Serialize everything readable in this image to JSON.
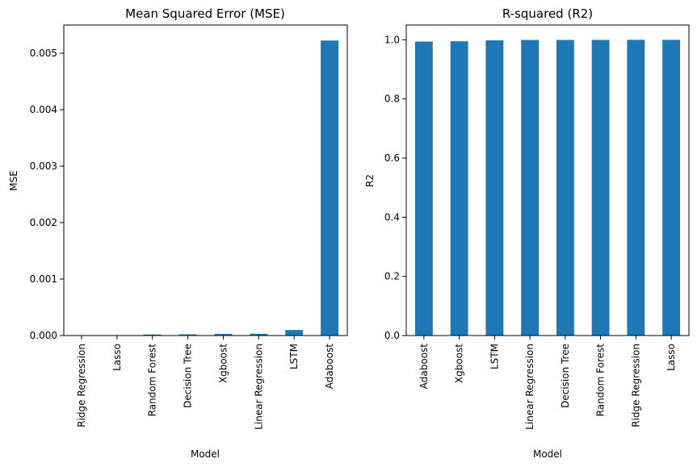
{
  "chart_data": [
    {
      "type": "bar",
      "title": "Mean Squared Error (MSE)",
      "xlabel": "Model",
      "ylabel": "MSE",
      "categories": [
        "Ridge Regression",
        "Lasso",
        "Random Forest",
        "Decision Tree",
        "Xgboost",
        "Linear Regression",
        "LSTM",
        "Adaboost"
      ],
      "values": [
        2e-07,
        3e-07,
        1.8e-05,
        2.1e-05,
        2.8e-05,
        3.1e-05,
        9.8e-05,
        0.005225
      ],
      "ylim": [
        0,
        0.0055
      ],
      "yticks": [
        "0.000",
        "0.001",
        "0.002",
        "0.003",
        "0.004",
        "0.005"
      ],
      "ytick_values": [
        0,
        0.001,
        0.002,
        0.003,
        0.004,
        0.005
      ],
      "bar_color": "#1f77b4",
      "grid": false,
      "legend": "none"
    },
    {
      "type": "bar",
      "title": "R-squared (R2)",
      "xlabel": "Model",
      "ylabel": "R2",
      "categories": [
        "Adaboost",
        "Xgboost",
        "LSTM",
        "Linear Regression",
        "Decision Tree",
        "Random Forest",
        "Ridge Regression",
        "Lasso"
      ],
      "values": [
        0.994,
        0.995,
        0.998,
        0.9995,
        0.9996,
        0.9997,
        0.9999,
        0.9999
      ],
      "ylim": [
        0,
        1.05
      ],
      "yticks": [
        "0.0",
        "0.2",
        "0.4",
        "0.6",
        "0.8",
        "1.0"
      ],
      "ytick_values": [
        0,
        0.2,
        0.4,
        0.6,
        0.8,
        1.0
      ],
      "bar_color": "#1f77b4",
      "grid": false,
      "legend": "none"
    }
  ]
}
